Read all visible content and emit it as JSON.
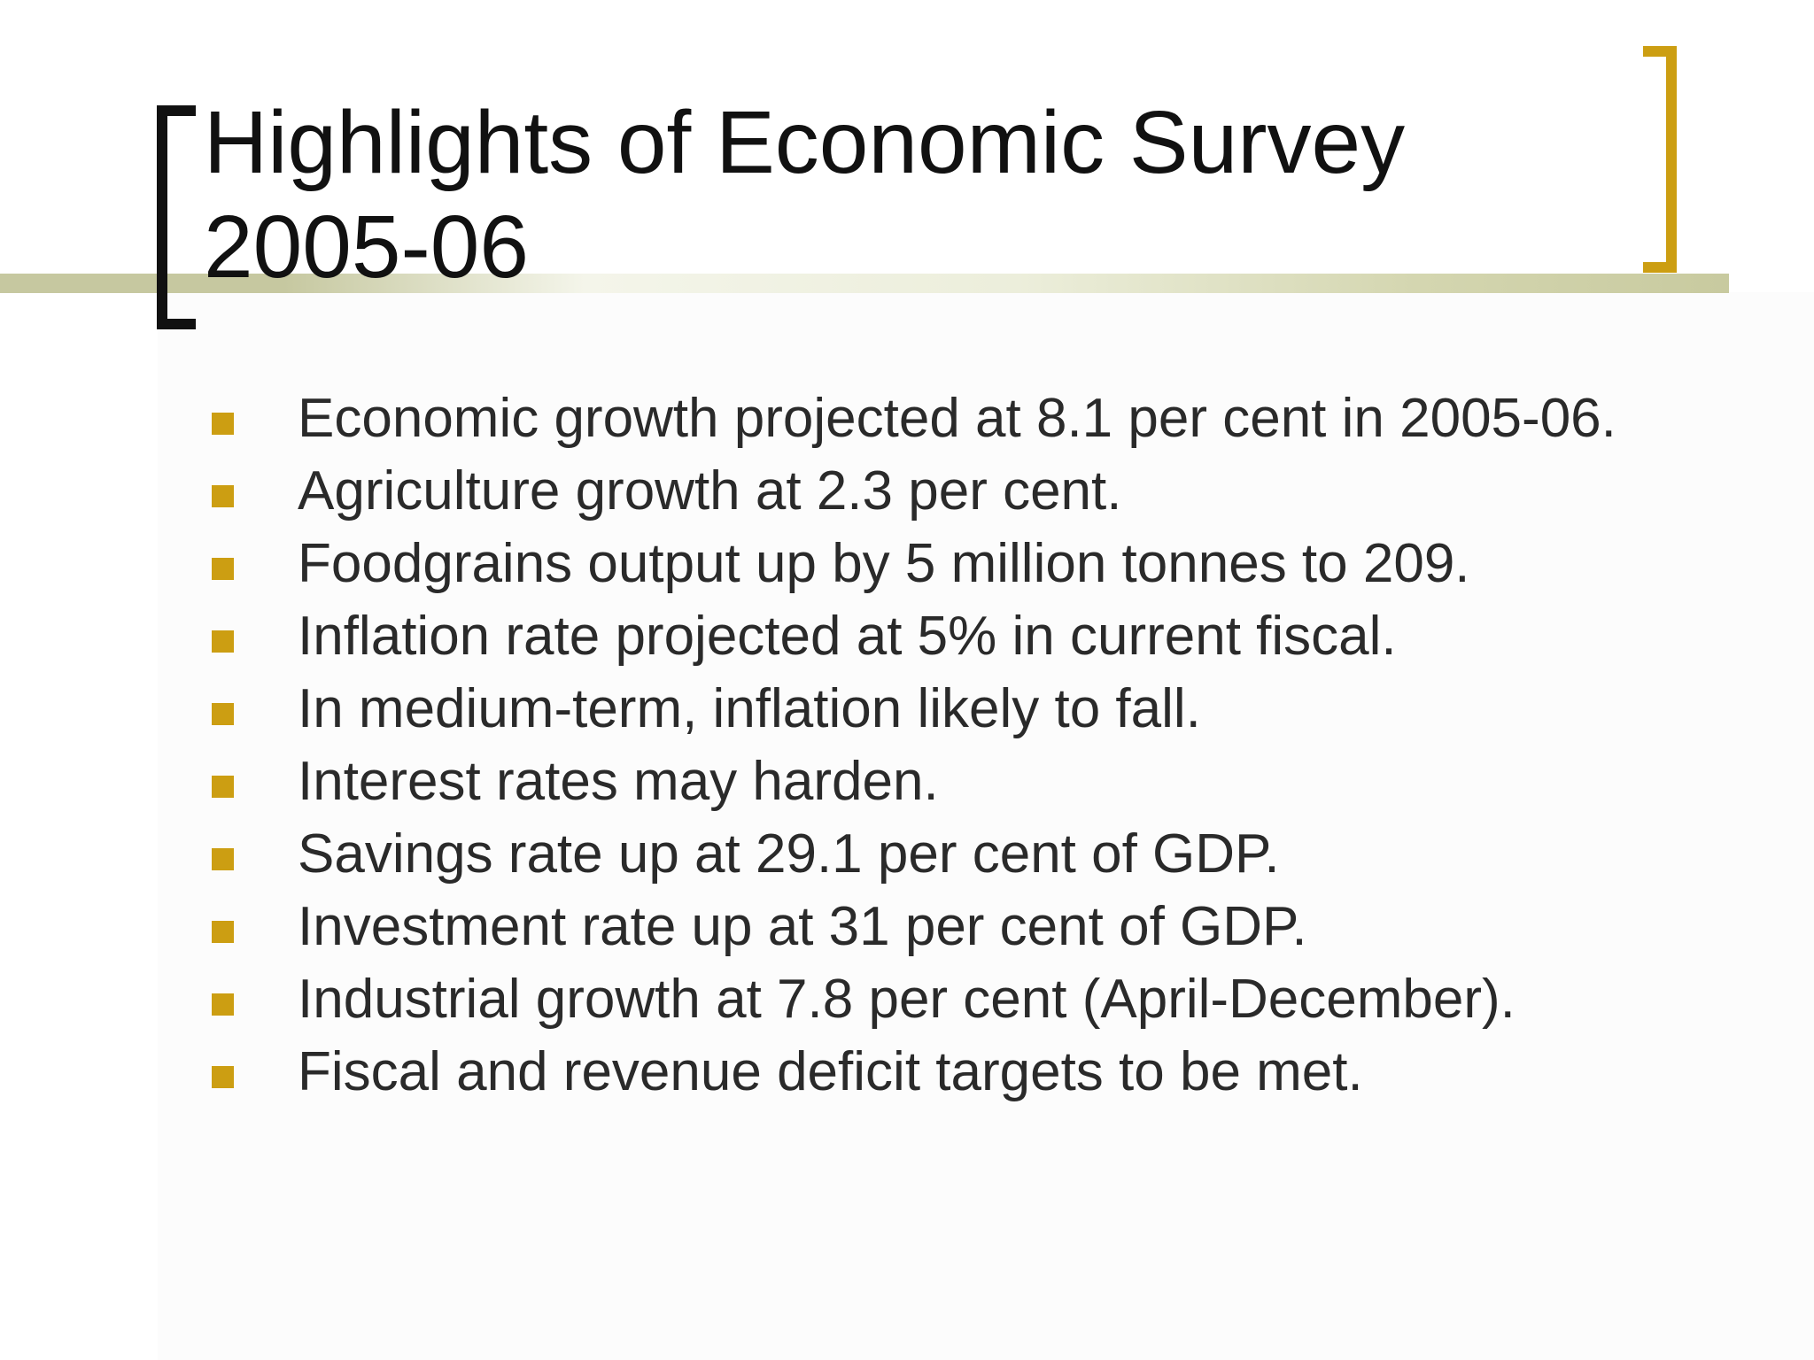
{
  "slide": {
    "title": "Highlights of Economic Survey 2005-06",
    "bullets": [
      "Economic growth projected at 8.1 per cent in 2005-06.",
      "Agriculture growth at 2.3 per cent.",
      "Foodgrains output up by 5 million tonnes to 209.",
      "Inflation rate projected at 5% in current fiscal.",
      "In medium-term, inflation likely to fall.",
      "Interest rates may harden.",
      "Savings rate up at 29.1 per cent of GDP.",
      "Investment rate up at 31 per cent of GDP.",
      "Industrial growth at 7.8 per cent (April-December).",
      "Fiscal and revenue deficit targets to be met."
    ]
  },
  "colors": {
    "accent": "#cc9e12",
    "bracket_left": "#111111",
    "rule": "#c6c8a0",
    "text": "#2a2a2a"
  },
  "icons": {
    "bullet": "square-bullet-icon"
  }
}
